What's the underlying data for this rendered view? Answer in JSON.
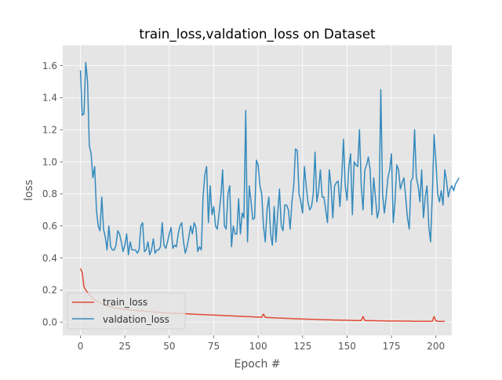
{
  "chart_data": {
    "type": "line",
    "title": "train_loss,valdation_loss on Dataset",
    "xlabel": "Epoch #",
    "ylabel": "loss",
    "xlim": [
      -9.95,
      208.95
    ],
    "ylim": [
      -0.083,
      1.727
    ],
    "xticks": [
      0,
      25,
      50,
      75,
      100,
      125,
      150,
      175,
      200
    ],
    "yticks": [
      0.0,
      0.2,
      0.4,
      0.6,
      0.8,
      1.0,
      1.2,
      1.4,
      1.6
    ],
    "ytick_labels": [
      "0.0",
      "0.2",
      "0.4",
      "0.6",
      "0.8",
      "1.0",
      "1.2",
      "1.4",
      "1.6"
    ],
    "grid": true,
    "legend": "lower-left",
    "style": "ggplot",
    "colors": {
      "axes_bg": "#E5E5E5",
      "grid": "#FFFFFF",
      "train": "#E24A33",
      "val": "#348ABD"
    },
    "series": [
      {
        "name": "train_loss",
        "color": "#E24A33",
        "x_start": 0,
        "values": [
          0.335,
          0.31,
          0.22,
          0.2,
          0.185,
          0.17,
          0.16,
          0.145,
          0.14,
          0.13,
          0.125,
          0.12,
          0.115,
          0.11,
          0.105,
          0.1,
          0.098,
          0.095,
          0.092,
          0.09,
          0.088,
          0.086,
          0.085,
          0.083,
          0.081,
          0.08,
          0.079,
          0.078,
          0.076,
          0.075,
          0.074,
          0.073,
          0.072,
          0.071,
          0.07,
          0.069,
          0.068,
          0.067,
          0.066,
          0.065,
          0.064,
          0.063,
          0.062,
          0.062,
          0.061,
          0.06,
          0.06,
          0.059,
          0.058,
          0.058,
          0.057,
          0.056,
          0.056,
          0.055,
          0.055,
          0.054,
          0.054,
          0.053,
          0.053,
          0.052,
          0.052,
          0.051,
          0.05,
          0.05,
          0.049,
          0.049,
          0.048,
          0.048,
          0.047,
          0.047,
          0.046,
          0.046,
          0.045,
          0.045,
          0.044,
          0.044,
          0.043,
          0.043,
          0.042,
          0.042,
          0.041,
          0.041,
          0.04,
          0.04,
          0.039,
          0.039,
          0.038,
          0.038,
          0.037,
          0.037,
          0.036,
          0.036,
          0.035,
          0.035,
          0.034,
          0.034,
          0.033,
          0.033,
          0.032,
          0.032,
          0.031,
          0.031,
          0.03,
          0.05,
          0.03,
          0.029,
          0.028,
          0.028,
          0.027,
          0.027,
          0.026,
          0.026,
          0.025,
          0.025,
          0.024,
          0.024,
          0.023,
          0.023,
          0.022,
          0.022,
          0.021,
          0.021,
          0.02,
          0.02,
          0.02,
          0.019,
          0.019,
          0.018,
          0.018,
          0.018,
          0.017,
          0.017,
          0.017,
          0.016,
          0.016,
          0.016,
          0.015,
          0.015,
          0.015,
          0.014,
          0.014,
          0.014,
          0.013,
          0.013,
          0.013,
          0.013,
          0.012,
          0.012,
          0.012,
          0.012,
          0.011,
          0.011,
          0.011,
          0.011,
          0.01,
          0.01,
          0.01,
          0.01,
          0.01,
          0.035,
          0.01,
          0.009,
          0.009,
          0.009,
          0.009,
          0.009,
          0.008,
          0.008,
          0.008,
          0.008,
          0.008,
          0.008,
          0.007,
          0.007,
          0.007,
          0.007,
          0.007,
          0.007,
          0.007,
          0.006,
          0.006,
          0.006,
          0.006,
          0.006,
          0.006,
          0.006,
          0.006,
          0.005,
          0.005,
          0.005,
          0.005,
          0.005,
          0.005,
          0.005,
          0.005,
          0.005,
          0.005,
          0.005,
          0.005,
          0.035,
          0.008,
          0.005,
          0.004,
          0.004,
          0.004,
          0.004
        ]
      },
      {
        "name": "valdation_loss",
        "color": "#348ABD",
        "x_start": 0,
        "values": [
          1.57,
          1.29,
          1.3,
          1.62,
          1.5,
          1.1,
          1.05,
          0.9,
          0.97,
          0.7,
          0.6,
          0.57,
          0.78,
          0.58,
          0.53,
          0.45,
          0.6,
          0.47,
          0.45,
          0.45,
          0.48,
          0.57,
          0.55,
          0.5,
          0.44,
          0.48,
          0.55,
          0.42,
          0.5,
          0.45,
          0.45,
          0.45,
          0.43,
          0.45,
          0.6,
          0.62,
          0.44,
          0.45,
          0.5,
          0.42,
          0.45,
          0.52,
          0.43,
          0.45,
          0.45,
          0.47,
          0.62,
          0.48,
          0.46,
          0.5,
          0.55,
          0.59,
          0.46,
          0.48,
          0.47,
          0.55,
          0.6,
          0.62,
          0.5,
          0.43,
          0.47,
          0.53,
          0.6,
          0.55,
          0.62,
          0.59,
          0.44,
          0.47,
          0.45,
          0.78,
          0.92,
          0.97,
          0.62,
          0.85,
          0.67,
          0.72,
          0.6,
          0.58,
          0.68,
          0.78,
          0.95,
          0.6,
          0.58,
          0.8,
          0.85,
          0.47,
          0.6,
          0.55,
          0.55,
          0.77,
          0.55,
          0.68,
          0.65,
          1.32,
          0.5,
          0.85,
          0.75,
          0.64,
          0.65,
          1.01,
          0.98,
          0.85,
          0.8,
          0.6,
          0.5,
          0.7,
          0.78,
          0.55,
          0.48,
          0.72,
          0.5,
          0.68,
          0.83,
          0.6,
          0.57,
          0.73,
          0.73,
          0.7,
          0.58,
          0.75,
          0.85,
          1.08,
          1.07,
          0.8,
          0.75,
          0.68,
          0.97,
          0.85,
          0.75,
          0.7,
          0.72,
          0.8,
          1.06,
          0.75,
          0.82,
          0.95,
          0.78,
          0.78,
          0.7,
          0.62,
          0.95,
          0.85,
          0.65,
          0.85,
          0.87,
          0.88,
          0.72,
          0.9,
          1.14,
          0.85,
          0.76,
          0.97,
          1.05,
          0.67,
          1.0,
          0.98,
          0.97,
          1.2,
          0.85,
          0.7,
          0.95,
          0.98,
          1.03,
          0.95,
          0.67,
          0.9,
          0.78,
          0.65,
          0.7,
          1.45,
          0.8,
          0.68,
          0.78,
          0.9,
          0.95,
          1.05,
          0.62,
          0.75,
          0.98,
          0.95,
          0.83,
          0.87,
          0.9,
          0.78,
          0.65,
          0.58,
          0.88,
          0.9,
          1.2,
          0.9,
          0.85,
          0.75,
          0.95,
          0.65,
          0.78,
          0.85,
          0.6,
          0.5,
          0.8,
          1.17,
          1.0,
          0.8,
          0.75,
          0.82,
          0.73,
          0.95,
          0.88,
          0.78,
          0.83,
          0.85,
          0.82,
          0.86,
          0.88,
          0.9
        ]
      }
    ]
  }
}
